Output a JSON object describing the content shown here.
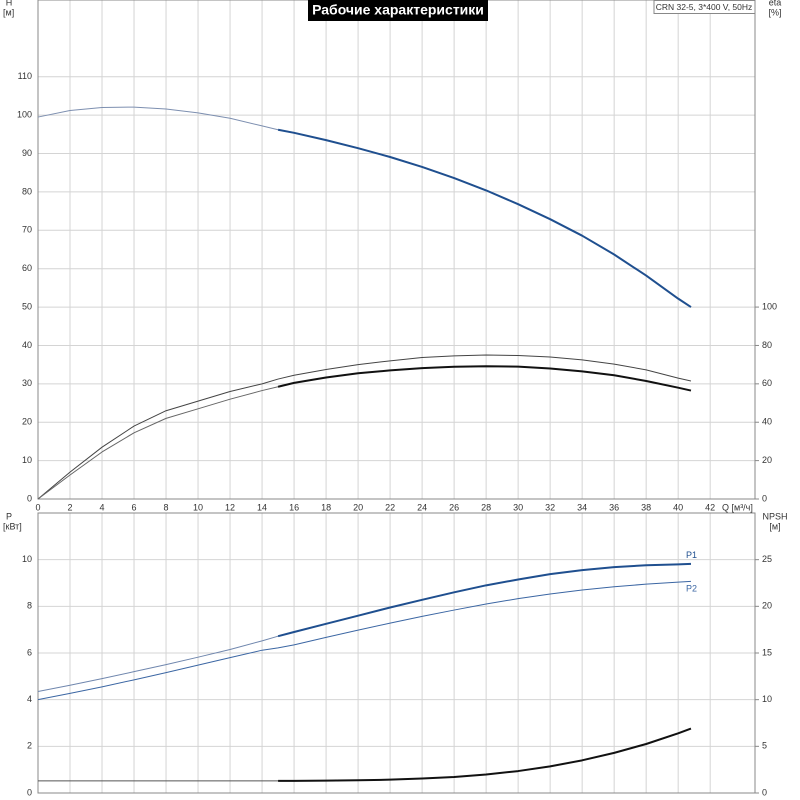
{
  "chart_data": [
    {
      "type": "line",
      "title": "Рабочие характеристики",
      "note": "CRN 32-5, 3*400 V, 50Hz",
      "xlabel": "Q [м³/ч]",
      "ylabel": [
        "H",
        "[м]"
      ],
      "y2label": [
        "eta",
        "[%]"
      ],
      "x": [
        0,
        2,
        4,
        6,
        8,
        10,
        12,
        14,
        15,
        16,
        18,
        20,
        22,
        24,
        26,
        28,
        30,
        32,
        34,
        36,
        38,
        40,
        40.8
      ],
      "xlim": [
        0,
        44.8
      ],
      "xticks": [
        0,
        2,
        4,
        6,
        8,
        10,
        12,
        14,
        16,
        18,
        20,
        22,
        24,
        26,
        28,
        30,
        32,
        34,
        36,
        38,
        40,
        42
      ],
      "ylim": [
        0,
        130
      ],
      "yticks": [
        0,
        10,
        20,
        30,
        40,
        50,
        60,
        70,
        80,
        90,
        100,
        110
      ],
      "y2lim": [
        0,
        260
      ],
      "y2ticks": [
        0,
        20,
        40,
        60,
        80,
        100
      ],
      "grid": true,
      "series": [
        {
          "color": "#7d8fb0",
          "linewidth": 1,
          "values": [
            99.5,
            101.2,
            102,
            102.1,
            101.6,
            100.6,
            99.2,
            97.2,
            96.2,
            null,
            null,
            null,
            null,
            null,
            null,
            null,
            null,
            null,
            null,
            null,
            null,
            null,
            null
          ]
        },
        {
          "color": "#1f4f8f",
          "linewidth": 2,
          "values": [
            null,
            null,
            null,
            null,
            null,
            null,
            null,
            null,
            96.2,
            95.4,
            93.5,
            91.4,
            89.1,
            86.5,
            83.6,
            80.4,
            76.8,
            72.9,
            68.6,
            63.7,
            58.2,
            52.2,
            50.0
          ]
        },
        {
          "color": "#444444",
          "linewidth": 1,
          "axis": "y2",
          "values": [
            0,
            14,
            27,
            38,
            46,
            51,
            56,
            60,
            62.5,
            64.5,
            67.5,
            70,
            72,
            73.7,
            74.6,
            75,
            74.8,
            74,
            72.5,
            70.3,
            67.3,
            63,
            61.5
          ]
        },
        {
          "color": "#666666",
          "linewidth": 1,
          "axis": "y2",
          "values": [
            0,
            12.5,
            24.5,
            34.5,
            42,
            47,
            52,
            56.5,
            58.5,
            null,
            null,
            null,
            null,
            null,
            null,
            null,
            null,
            null,
            null,
            null,
            null,
            null,
            null
          ]
        },
        {
          "color": "#111111",
          "linewidth": 2,
          "axis": "y2",
          "values": [
            null,
            null,
            null,
            null,
            null,
            null,
            null,
            null,
            58.5,
            60.5,
            63.3,
            65.5,
            67,
            68.2,
            68.9,
            69.2,
            69,
            68,
            66.5,
            64.5,
            61.5,
            58,
            56.5
          ]
        }
      ]
    },
    {
      "type": "line",
      "ylabel": [
        "P",
        "[кВт]"
      ],
      "y2label": [
        "NPSH",
        "[м]"
      ],
      "x": [
        0,
        2,
        4,
        6,
        8,
        10,
        12,
        14,
        15,
        16,
        18,
        20,
        22,
        24,
        26,
        28,
        30,
        32,
        34,
        36,
        38,
        40,
        40.8
      ],
      "xlim": [
        0,
        44.8
      ],
      "xticks": [
        0,
        2,
        4,
        6,
        8,
        10,
        12,
        14,
        16,
        18,
        20,
        22,
        24,
        26,
        28,
        30,
        32,
        34,
        36,
        38,
        40,
        42
      ],
      "ylim": [
        0,
        12
      ],
      "yticks": [
        0,
        2,
        4,
        6,
        8,
        10
      ],
      "y2lim": [
        0,
        30
      ],
      "y2ticks": [
        0,
        5,
        10,
        15,
        20,
        25
      ],
      "grid": true,
      "series": [
        {
          "color": "#6f86ad",
          "linewidth": 1,
          "values": [
            4.35,
            4.62,
            4.9,
            5.2,
            5.5,
            5.82,
            6.15,
            6.52,
            6.72,
            null,
            null,
            null,
            null,
            null,
            null,
            null,
            null,
            null,
            null,
            null,
            null,
            null,
            null
          ]
        },
        {
          "name": "P1",
          "color": "#1f4f8f",
          "linewidth": 2,
          "values": [
            null,
            null,
            null,
            null,
            null,
            null,
            null,
            null,
            6.72,
            6.9,
            7.25,
            7.6,
            7.95,
            8.28,
            8.6,
            8.9,
            9.15,
            9.38,
            9.55,
            9.68,
            9.76,
            9.8,
            9.82
          ]
        },
        {
          "name": "P2",
          "color": "#3b66a3",
          "linewidth": 1,
          "values": [
            4.0,
            4.27,
            4.55,
            4.85,
            5.16,
            5.48,
            5.8,
            6.12,
            6.22,
            6.35,
            6.67,
            6.98,
            7.28,
            7.57,
            7.84,
            8.1,
            8.33,
            8.53,
            8.7,
            8.84,
            8.95,
            9.04,
            9.07
          ]
        },
        {
          "color": "#555555",
          "linewidth": 1,
          "axis": "y2",
          "values": [
            1.3,
            1.3,
            1.3,
            1.3,
            1.3,
            1.3,
            1.3,
            1.3,
            1.3,
            null,
            null,
            null,
            null,
            null,
            null,
            null,
            null,
            null,
            null,
            null,
            null,
            null,
            null
          ]
        },
        {
          "color": "#111111",
          "linewidth": 2,
          "axis": "y2",
          "values": [
            null,
            null,
            null,
            null,
            null,
            null,
            null,
            null,
            1.3,
            1.3,
            1.32,
            1.36,
            1.43,
            1.55,
            1.72,
            1.98,
            2.35,
            2.85,
            3.5,
            4.3,
            5.25,
            6.4,
            6.9
          ]
        }
      ]
    }
  ]
}
